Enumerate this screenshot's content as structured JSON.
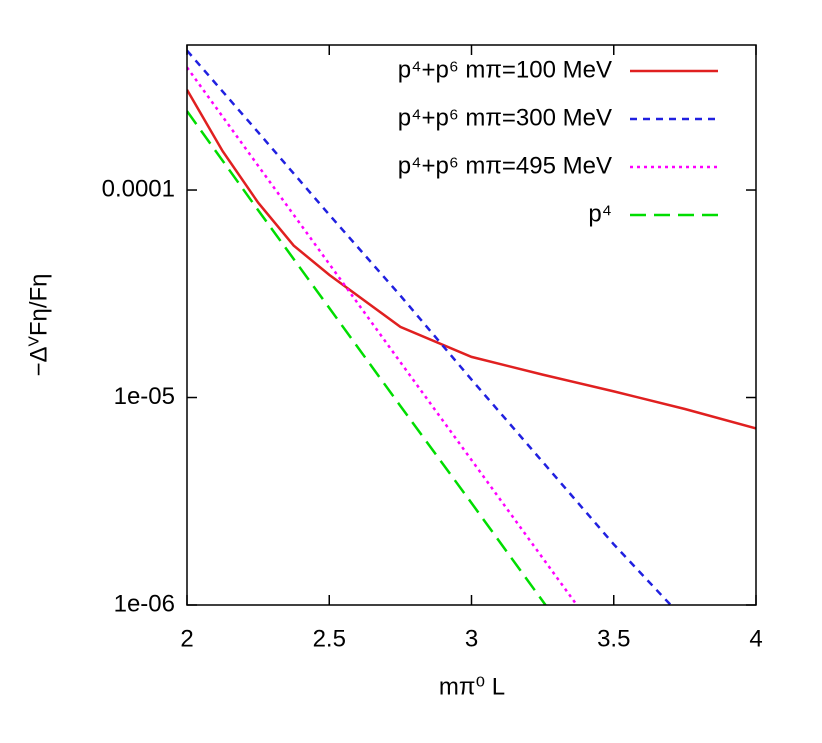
{
  "chart_data": {
    "type": "line",
    "x_label": "mπ⁰ L",
    "y_label": "−ΔⱽFη/Fη",
    "xlim": [
      2,
      4
    ],
    "xticks": [
      2,
      2.5,
      3,
      3.5,
      4
    ],
    "ylim": [
      1e-06,
      0.0005
    ],
    "y_log": true,
    "yticks": [
      {
        "value": 1e-06,
        "label": "1e-06"
      },
      {
        "value": 1e-05,
        "label": "1e-05"
      },
      {
        "value": 0.0001,
        "label": "0.0001"
      }
    ],
    "legend": "top-right",
    "series": [
      {
        "name": "p⁴+p⁶ mπ=100 MeV",
        "color": "#e02020",
        "dash": "solid",
        "x": [
          2,
          2.125,
          2.25,
          2.375,
          2.5,
          2.75,
          3,
          3.25,
          3.5,
          3.75,
          4
        ],
        "values": [
          0.000304,
          0.000154,
          8.7e-05,
          5.4e-05,
          3.9e-05,
          2.19e-05,
          1.57e-05,
          1.29e-05,
          1.07e-05,
          8.8e-06,
          7.1e-06
        ]
      },
      {
        "name": "p⁴+p⁶ mπ=300 MeV",
        "color": "#2020e0",
        "dash": "short",
        "x": [
          2,
          2.25,
          2.5,
          2.75,
          3,
          3.25,
          3.5,
          3.7
        ],
        "values": [
          0.00047,
          0.00019,
          7.6e-05,
          3.1e-05,
          1.22e-05,
          4.9e-06,
          1.96e-06,
          1e-06
        ]
      },
      {
        "name": "p⁴+p⁶ mπ=495 MeV",
        "color": "#ff00ff",
        "dash": "dot",
        "x": [
          2,
          2.25,
          2.5,
          2.75,
          3,
          3.37
        ],
        "values": [
          0.00039,
          0.000131,
          4.4e-05,
          1.48e-05,
          5e-06,
          1e-06
        ]
      },
      {
        "name": "p⁴",
        "color": "#00dd00",
        "dash": "long",
        "x": [
          2,
          2.25,
          2.5,
          2.75,
          3,
          3.26
        ],
        "values": [
          0.00024,
          8e-05,
          2.7e-05,
          9.1e-06,
          3.1e-06,
          1e-06
        ]
      }
    ]
  }
}
